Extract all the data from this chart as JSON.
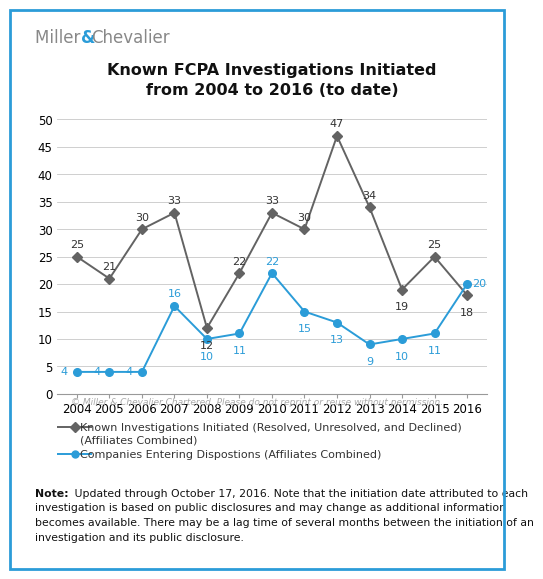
{
  "title": "Known FCPA Investigations Initiated\nfrom 2004 to 2016 (to date)",
  "years": [
    2004,
    2005,
    2006,
    2007,
    2008,
    2009,
    2010,
    2011,
    2012,
    2013,
    2014,
    2015,
    2016
  ],
  "investigations": [
    25,
    21,
    30,
    33,
    12,
    22,
    33,
    30,
    47,
    34,
    19,
    25,
    18
  ],
  "dispositions": [
    4,
    4,
    4,
    16,
    10,
    11,
    22,
    15,
    13,
    9,
    10,
    11,
    20
  ],
  "inv_color": "#636363",
  "disp_color": "#2B9CD8",
  "ylim": [
    0,
    52
  ],
  "yticks": [
    0,
    5,
    10,
    15,
    20,
    25,
    30,
    35,
    40,
    45,
    50
  ],
  "copyright_text": "© Miller & Chevalier Chartered. Please do not reprint or reuse without permission.",
  "legend1_line1": "Known Investigations Initiated (Resolved, Unresolved, and Declined)",
  "legend1_line2": "(Affiliates Combined)",
  "legend2": "Companies Entering Dispostions (Affiliates Combined)",
  "note_bold": "Note:",
  "note_text": " Updated through October 17, 2016. Note that the initiation date attributed to each investigation is based on public disclosures and may change as additional information becomes available. There may be a lag time of several months between the initiation of an investigation and its public disclosure.",
  "background_color": "#ffffff",
  "border_color": "#2B9CD8",
  "title_fontsize": 11.5,
  "tick_fontsize": 8.5,
  "annot_fontsize": 8.0,
  "logo_fontsize": 12,
  "legend_fontsize": 8.0,
  "note_fontsize": 7.8,
  "copy_fontsize": 6.5
}
